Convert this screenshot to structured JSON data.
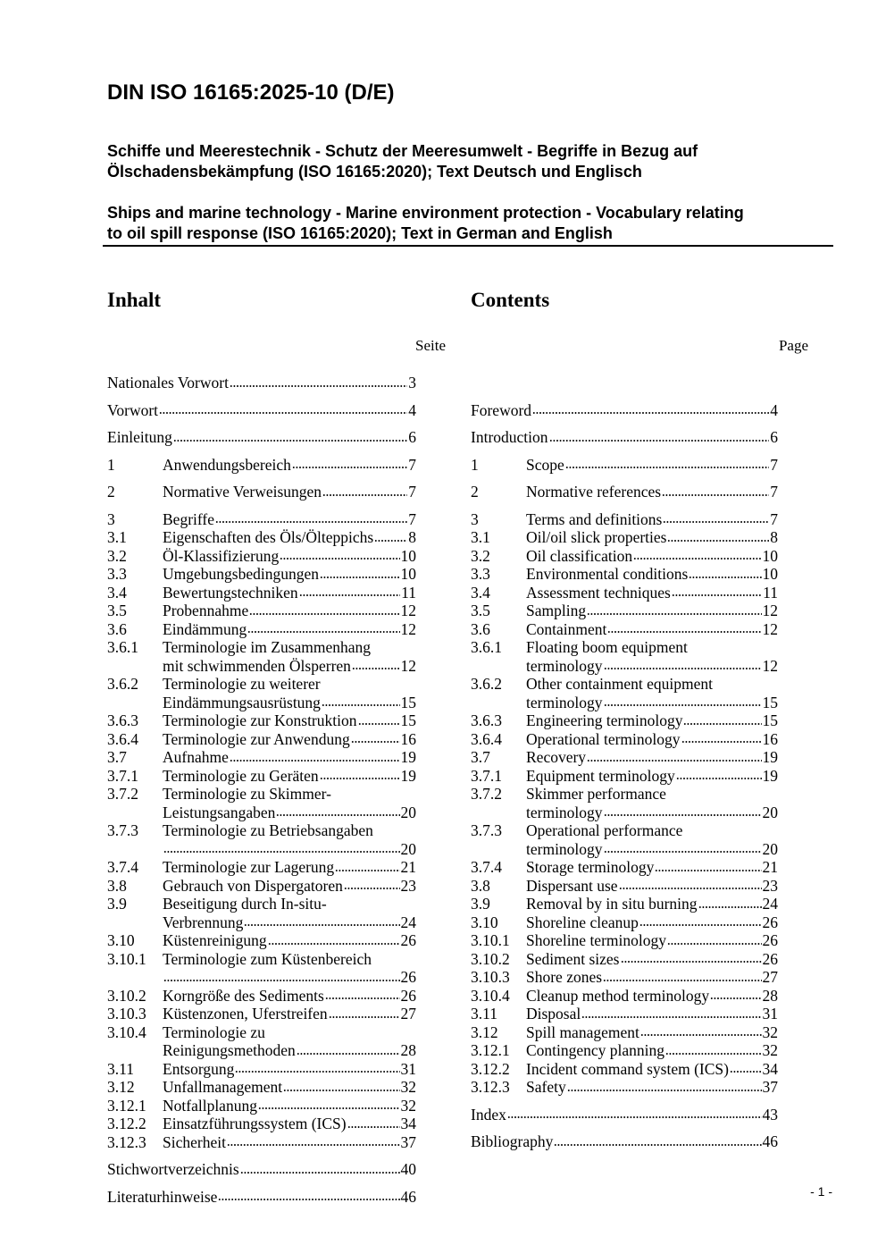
{
  "header": {
    "title": "DIN ISO 16165:2025-10 (D/E)",
    "subtitle_de": [
      "Schiffe und Meerestechnik - Schutz der Meeresumwelt - Begriffe in Bezug auf",
      "Ölschadensbekämpfung (ISO 16165:2020); Text Deutsch und Englisch"
    ],
    "subtitle_en": [
      "Ships and marine technology - Marine environment protection - Vocabulary relating",
      "to oil spill response (ISO 16165:2020); Text in German and English"
    ]
  },
  "toc_de": {
    "heading": "Inhalt",
    "page_label": "Seite",
    "entries": [
      {
        "title": [
          "Nationales Vorwort"
        ],
        "page": 3
      },
      {
        "title": [
          "Vorwort"
        ],
        "page": 4
      },
      {
        "title": [
          "Einleitung"
        ],
        "page": 6
      },
      {
        "num": "1",
        "title": [
          "Anwendungsbereich"
        ],
        "page": 7
      },
      {
        "num": "2",
        "title": [
          "Normative Verweisungen"
        ],
        "page": 7
      },
      {
        "num": "3",
        "title": [
          "Begriffe"
        ],
        "page": 7
      },
      {
        "num": "3.1",
        "title": [
          "Eigenschaften des Öls/Ölteppichs"
        ],
        "page": 8
      },
      {
        "num": "3.2",
        "title": [
          "Öl-Klassifizierung"
        ],
        "page": 10
      },
      {
        "num": "3.3",
        "title": [
          "Umgebungsbedingungen"
        ],
        "page": 10
      },
      {
        "num": "3.4",
        "title": [
          "Bewertungstechniken"
        ],
        "page": 11
      },
      {
        "num": "3.5",
        "title": [
          "Probennahme"
        ],
        "page": 12
      },
      {
        "num": "3.6",
        "title": [
          "Eindämmung"
        ],
        "page": 12
      },
      {
        "num": "3.6.1",
        "title": [
          "Terminologie im Zusammenhang",
          "mit schwimmenden Ölsperren"
        ],
        "page": 12
      },
      {
        "num": "3.6.2",
        "title": [
          "Terminologie zu weiterer",
          "Eindämmungsausrüstung"
        ],
        "page": 15
      },
      {
        "num": "3.6.3",
        "title": [
          "Terminologie zur Konstruktion"
        ],
        "page": 15
      },
      {
        "num": "3.6.4",
        "title": [
          "Terminologie zur Anwendung"
        ],
        "page": 16
      },
      {
        "num": "3.7",
        "title": [
          "Aufnahme"
        ],
        "page": 19
      },
      {
        "num": "3.7.1",
        "title": [
          "Terminologie zu Geräten"
        ],
        "page": 19
      },
      {
        "num": "3.7.2",
        "title": [
          "Terminologie zu Skimmer-",
          "Leistungsangaben"
        ],
        "page": 20
      },
      {
        "num": "3.7.3",
        "title": [
          "Terminologie zu Betriebsangaben"
        ],
        "page": 20
      },
      {
        "num": "3.7.4",
        "title": [
          "Terminologie zur Lagerung"
        ],
        "page": 21
      },
      {
        "num": "3.8",
        "title": [
          "Gebrauch von Dispergatoren"
        ],
        "page": 23
      },
      {
        "num": "3.9",
        "title": [
          "Beseitigung durch In-situ-",
          "Verbrennung"
        ],
        "page": 24
      },
      {
        "num": "3.10",
        "title": [
          "Küstenreinigung"
        ],
        "page": 26
      },
      {
        "num": "3.10.1",
        "title": [
          "Terminologie zum Küstenbereich"
        ],
        "page": 26
      },
      {
        "num": "3.10.2",
        "title": [
          "Korngröße des Sediments"
        ],
        "page": 26
      },
      {
        "num": "3.10.3",
        "title": [
          "Küstenzonen, Uferstreifen"
        ],
        "page": 27
      },
      {
        "num": "3.10.4",
        "title": [
          "Terminologie zu",
          "Reinigungsmethoden"
        ],
        "page": 28
      },
      {
        "num": "3.11",
        "title": [
          "Entsorgung"
        ],
        "page": 31
      },
      {
        "num": "3.12",
        "title": [
          "Unfallmanagement"
        ],
        "page": 32
      },
      {
        "num": "3.12.1",
        "title": [
          "Notfallplanung"
        ],
        "page": 32
      },
      {
        "num": "3.12.2",
        "title": [
          "Einsatzführungssystem (ICS)"
        ],
        "page": 34
      },
      {
        "num": "3.12.3",
        "title": [
          "Sicherheit"
        ],
        "page": 37
      },
      {
        "title": [
          "Stichwortverzeichnis"
        ],
        "page": 40
      },
      {
        "title": [
          "Literaturhinweise"
        ],
        "page": 46
      }
    ]
  },
  "toc_en": {
    "heading": "Contents",
    "page_label": "Page",
    "entries": [
      {
        "title": [
          "Foreword"
        ],
        "page": 4
      },
      {
        "title": [
          "Introduction"
        ],
        "page": 6
      },
      {
        "num": "1",
        "title": [
          "Scope"
        ],
        "page": 7
      },
      {
        "num": "2",
        "title": [
          "Normative references"
        ],
        "page": 7
      },
      {
        "num": "3",
        "title": [
          "Terms and definitions"
        ],
        "page": 7
      },
      {
        "num": "3.1",
        "title": [
          "Oil/oil slick properties"
        ],
        "page": 8
      },
      {
        "num": "3.2",
        "title": [
          "Oil classification"
        ],
        "page": 10
      },
      {
        "num": "3.3",
        "title": [
          "Environmental conditions"
        ],
        "page": 10
      },
      {
        "num": "3.4",
        "title": [
          "Assessment techniques"
        ],
        "page": 11
      },
      {
        "num": "3.5",
        "title": [
          "Sampling"
        ],
        "page": 12
      },
      {
        "num": "3.6",
        "title": [
          "Containment"
        ],
        "page": 12
      },
      {
        "num": "3.6.1",
        "title": [
          "Floating boom equipment",
          "terminology"
        ],
        "page": 12
      },
      {
        "num": "3.6.2",
        "title": [
          "Other containment equipment",
          "terminology"
        ],
        "page": 15
      },
      {
        "num": "3.6.3",
        "title": [
          "Engineering terminology"
        ],
        "page": 15
      },
      {
        "num": "3.6.4",
        "title": [
          "Operational terminology"
        ],
        "page": 16
      },
      {
        "num": "3.7",
        "title": [
          "Recovery"
        ],
        "page": 19
      },
      {
        "num": "3.7.1",
        "title": [
          "Equipment terminology"
        ],
        "page": 19
      },
      {
        "num": "3.7.2",
        "title": [
          "Skimmer performance",
          "terminology"
        ],
        "page": 20
      },
      {
        "num": "3.7.3",
        "title": [
          "Operational performance",
          "terminology"
        ],
        "page": 20
      },
      {
        "num": "3.7.4",
        "title": [
          "Storage terminology"
        ],
        "page": 21
      },
      {
        "num": "3.8",
        "title": [
          "Dispersant use"
        ],
        "page": 23
      },
      {
        "num": "3.9",
        "title": [
          "Removal by in situ burning"
        ],
        "page": 24
      },
      {
        "num": "3.10",
        "title": [
          "Shoreline cleanup"
        ],
        "page": 26
      },
      {
        "num": "3.10.1",
        "title": [
          "Shoreline terminology"
        ],
        "page": 26
      },
      {
        "num": "3.10.2",
        "title": [
          "Sediment sizes"
        ],
        "page": 26
      },
      {
        "num": "3.10.3",
        "title": [
          "Shore zones"
        ],
        "page": 27
      },
      {
        "num": "3.10.4",
        "title": [
          "Cleanup method terminology"
        ],
        "page": 28
      },
      {
        "num": "3.11",
        "title": [
          "Disposal"
        ],
        "page": 31
      },
      {
        "num": "3.12",
        "title": [
          "Spill management"
        ],
        "page": 32
      },
      {
        "num": "3.12.1",
        "title": [
          "Contingency planning"
        ],
        "page": 32
      },
      {
        "num": "3.12.2",
        "title": [
          "Incident command system (ICS)"
        ],
        "page": 34
      },
      {
        "num": "3.12.3",
        "title": [
          "Safety"
        ],
        "page": 37
      },
      {
        "title": [
          "Index"
        ],
        "page": 43
      },
      {
        "title": [
          "Bibliography"
        ],
        "page": 46
      }
    ]
  },
  "footer": {
    "page_number": "- 1 -"
  }
}
